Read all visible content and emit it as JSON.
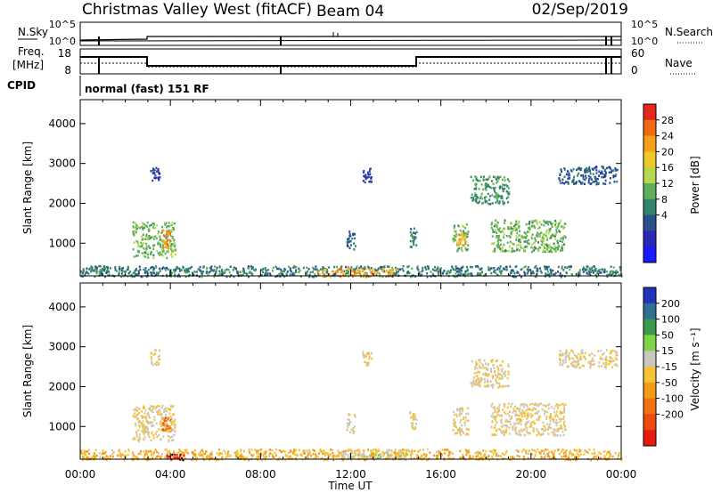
{
  "header": {
    "title": "Christmas Valley West (fitACF)",
    "beam": "Beam 04",
    "date": "02/Sep/2019"
  },
  "summary": {
    "nsky_label": "N.Sky",
    "nsky_ticks": [
      "10^5",
      "10^0"
    ],
    "nsearch_label": "N.Search",
    "nsearch_ticks": [
      "10^5",
      "10^0"
    ],
    "freq_label": "Freq.",
    "freq_unit": "[MHz]",
    "freq_ticks": [
      "18",
      "8"
    ],
    "nave_label": "Nave",
    "nave_ticks": [
      "60",
      "0"
    ],
    "cpid_label": "CPID",
    "cpid_text": "normal (fast) 151 RF"
  },
  "time_axis": {
    "label": "Time UT",
    "ticks": [
      "00:00",
      "04:00",
      "08:00",
      "12:00",
      "16:00",
      "20:00",
      "00:00"
    ]
  },
  "colorbars": {
    "power": {
      "label": "Power [dB]",
      "ticks": [
        "28",
        "24",
        "20",
        "16",
        "12",
        "8",
        "4"
      ],
      "colors": [
        "#e6261f",
        "#f06a14",
        "#f6a019",
        "#eec92a",
        "#b8d64e",
        "#5eae5a",
        "#32826c",
        "#2a508a",
        "#2a2ab8",
        "#1a1aff"
      ]
    },
    "velocity": {
      "label": "Velocity [m s⁻¹]",
      "ticks": [
        "200",
        "100",
        "50",
        "15",
        "-15",
        "-50",
        "-100",
        "-200"
      ],
      "colors": [
        "#2233bb",
        "#2f6f8f",
        "#3d9a4c",
        "#7ed34a",
        "#c8c8c0",
        "#f5c23a",
        "#f59a16",
        "#f07014",
        "#ee4a10",
        "#e81a0e"
      ]
    }
  },
  "chart_data": [
    {
      "type": "heatmap",
      "name": "Power",
      "xlabel": "Time UT",
      "ylabel": "Slant Range [km]",
      "xlim_hours": [
        0,
        24
      ],
      "ylim": [
        180,
        4600
      ],
      "yticks": [
        1000,
        2000,
        3000,
        4000
      ],
      "colorbar": "Power [dB]",
      "clim": [
        0,
        30
      ],
      "echo_regions": [
        {
          "t_start": 3.1,
          "t_end": 3.5,
          "r_min": 2550,
          "r_max": 2950,
          "value": 6
        },
        {
          "t_start": 2.3,
          "t_end": 4.2,
          "r_min": 650,
          "r_max": 1550,
          "value": 14
        },
        {
          "t_start": 3.6,
          "t_end": 4.0,
          "r_min": 850,
          "r_max": 1350,
          "value": 24
        },
        {
          "t_start": 11.8,
          "t_end": 12.2,
          "r_min": 850,
          "r_max": 1350,
          "value": 8
        },
        {
          "t_start": 12.5,
          "t_end": 12.9,
          "r_min": 2550,
          "r_max": 2900,
          "value": 6
        },
        {
          "t_start": 14.6,
          "t_end": 14.9,
          "r_min": 900,
          "r_max": 1400,
          "value": 10
        },
        {
          "t_start": 16.5,
          "t_end": 17.2,
          "r_min": 800,
          "r_max": 1500,
          "value": 14
        },
        {
          "t_start": 16.7,
          "t_end": 17.1,
          "r_min": 950,
          "r_max": 1250,
          "value": 22
        },
        {
          "t_start": 17.3,
          "t_end": 19.0,
          "r_min": 2000,
          "r_max": 2700,
          "value": 12
        },
        {
          "t_start": 18.2,
          "t_end": 21.5,
          "r_min": 800,
          "r_max": 1600,
          "value": 14
        },
        {
          "t_start": 21.2,
          "t_end": 23.8,
          "r_min": 2500,
          "r_max": 2950,
          "value": 8
        },
        {
          "t_start": 0.0,
          "t_end": 24.0,
          "r_min": 180,
          "r_max": 450,
          "value": 10
        },
        {
          "t_start": 10.5,
          "t_end": 14.0,
          "r_min": 180,
          "r_max": 400,
          "value": 22
        }
      ]
    },
    {
      "type": "heatmap",
      "name": "Velocity",
      "xlabel": "Time UT",
      "ylabel": "Slant Range [km]",
      "xlim_hours": [
        0,
        24
      ],
      "ylim": [
        180,
        4600
      ],
      "yticks": [
        1000,
        2000,
        3000,
        4000
      ],
      "colorbar": "Velocity [m s⁻¹]",
      "clim": [
        -250,
        250
      ],
      "echo_regions": [
        {
          "t_start": 3.1,
          "t_end": 3.5,
          "r_min": 2550,
          "r_max": 2950,
          "value": 0
        },
        {
          "t_start": 2.3,
          "t_end": 4.2,
          "r_min": 650,
          "r_max": 1550,
          "value": 0
        },
        {
          "t_start": 3.6,
          "t_end": 4.0,
          "r_min": 900,
          "r_max": 1250,
          "value": -120
        },
        {
          "t_start": 11.8,
          "t_end": 12.2,
          "r_min": 850,
          "r_max": 1350,
          "value": 0
        },
        {
          "t_start": 12.5,
          "t_end": 12.9,
          "r_min": 2550,
          "r_max": 2900,
          "value": 0
        },
        {
          "t_start": 14.6,
          "t_end": 14.9,
          "r_min": 900,
          "r_max": 1400,
          "value": 0
        },
        {
          "t_start": 16.5,
          "t_end": 17.2,
          "r_min": 800,
          "r_max": 1500,
          "value": 0
        },
        {
          "t_start": 17.3,
          "t_end": 19.0,
          "r_min": 2000,
          "r_max": 2700,
          "value": 0
        },
        {
          "t_start": 18.2,
          "t_end": 21.5,
          "r_min": 800,
          "r_max": 1600,
          "value": 0
        },
        {
          "t_start": 21.2,
          "t_end": 23.8,
          "r_min": 2500,
          "r_max": 2950,
          "value": 0
        },
        {
          "t_start": 0.0,
          "t_end": 24.0,
          "r_min": 180,
          "r_max": 450,
          "value": -40
        },
        {
          "t_start": 3.8,
          "t_end": 4.6,
          "r_min": 180,
          "r_max": 320,
          "value": -220
        },
        {
          "t_start": 11.5,
          "t_end": 14.5,
          "r_min": 180,
          "r_max": 450,
          "value": 20
        }
      ]
    }
  ]
}
